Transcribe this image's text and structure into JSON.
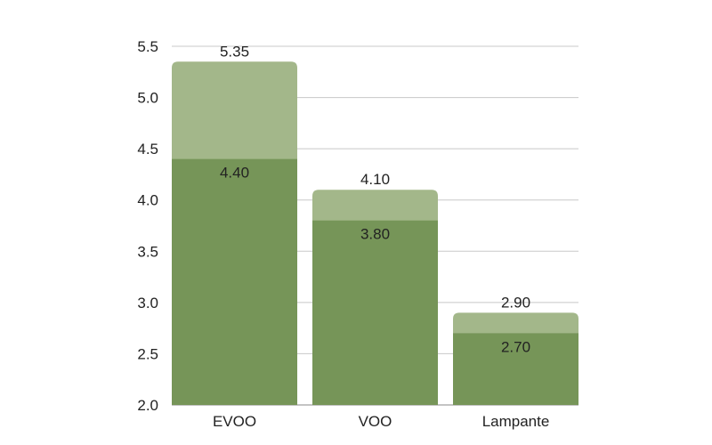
{
  "chart_data": {
    "type": "bar",
    "categories": [
      "EVOO",
      "VOO",
      "Lampante"
    ],
    "series": [
      {
        "values": [
          5.35,
          4.1,
          2.9
        ],
        "color": "#a3b78a"
      },
      {
        "values": [
          4.4,
          3.8,
          2.7
        ],
        "color": "#769558"
      }
    ],
    "data_labels": {
      "upper": [
        "5.35",
        "4.10",
        "2.90"
      ],
      "lower": [
        "4.40",
        "3.80",
        "2.70"
      ]
    },
    "y_ticks": [
      "2.0",
      "2.5",
      "3.0",
      "3.5",
      "4.0",
      "4.5",
      "5.0",
      "5.5"
    ],
    "ylim": [
      2.0,
      5.5
    ],
    "title": "",
    "xlabel": "",
    "ylabel": "",
    "grid": true,
    "legend": "none"
  }
}
